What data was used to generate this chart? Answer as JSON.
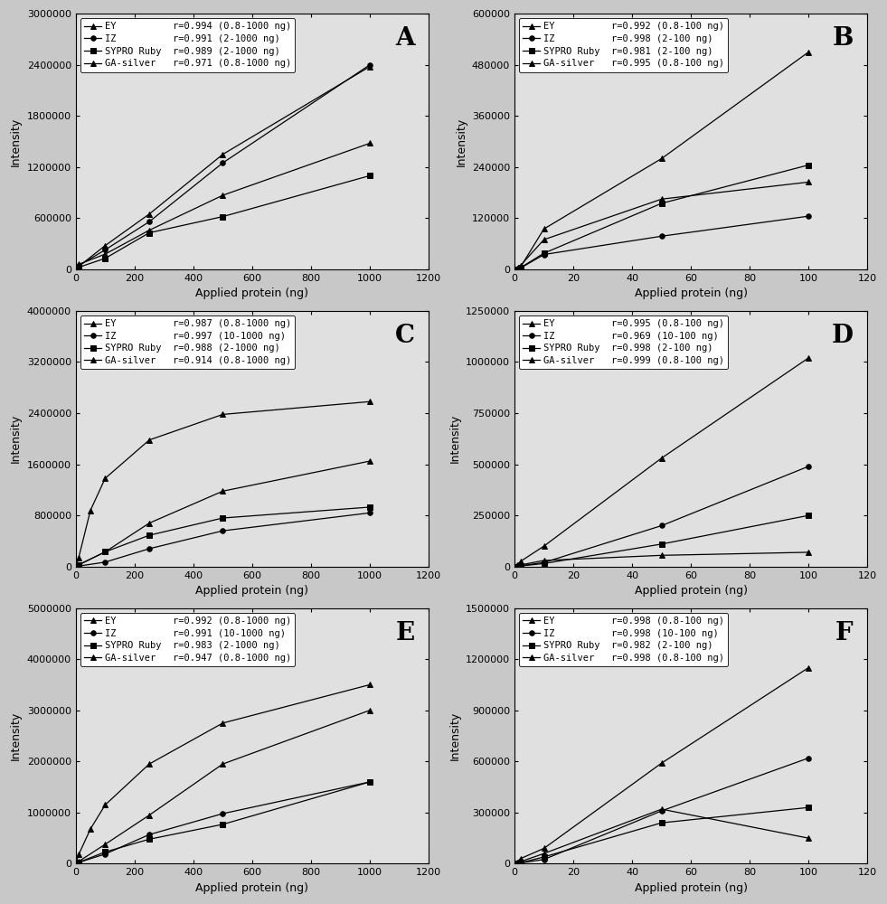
{
  "panels": [
    {
      "label": "A",
      "xlim": [
        0,
        1200
      ],
      "ylim": [
        0,
        3000000
      ],
      "xticks": [
        0,
        200,
        400,
        600,
        800,
        1000,
        1200
      ],
      "yticks": [
        0,
        600000,
        1200000,
        1800000,
        2400000,
        3000000
      ],
      "legend": [
        {
          "name": "EY",
          "r": "r=0.994 (0.8-1000 ng)"
        },
        {
          "name": "IZ",
          "r": "r=0.991 (2-1000 ng)"
        },
        {
          "name": "SYPRO Ruby",
          "r": "r=0.989 (2-1000 ng)"
        },
        {
          "name": "GA-silver",
          "r": "r=0.971 (0.8-1000 ng)"
        }
      ],
      "series": [
        {
          "x": [
            0,
            0.8,
            10,
            100,
            250,
            500,
            1000
          ],
          "y": [
            0,
            3000,
            35000,
            280000,
            650000,
            1350000,
            2380000
          ]
        },
        {
          "x": [
            0,
            2,
            10,
            100,
            250,
            500,
            1000
          ],
          "y": [
            0,
            5000,
            45000,
            230000,
            560000,
            1250000,
            2400000
          ]
        },
        {
          "x": [
            0,
            2,
            10,
            100,
            250,
            500,
            1000
          ],
          "y": [
            0,
            3000,
            25000,
            130000,
            430000,
            620000,
            1100000
          ]
        },
        {
          "x": [
            0,
            0.8,
            10,
            100,
            250,
            500,
            1000
          ],
          "y": [
            0,
            8000,
            60000,
            180000,
            460000,
            870000,
            1480000
          ]
        }
      ]
    },
    {
      "label": "B",
      "xlim": [
        0,
        120
      ],
      "ylim": [
        0,
        600000
      ],
      "xticks": [
        0,
        20,
        40,
        60,
        80,
        100,
        120
      ],
      "yticks": [
        0,
        120000,
        240000,
        360000,
        480000,
        600000
      ],
      "legend": [
        {
          "name": "EY",
          "r": "r=0.992 (0.8-100 ng)"
        },
        {
          "name": "IZ",
          "r": "r=0.998 (2-100 ng)"
        },
        {
          "name": "SYPRO Ruby",
          "r": "r=0.981 (2-100 ng)"
        },
        {
          "name": "GA-silver",
          "r": "r=0.995 (0.8-100 ng)"
        }
      ],
      "series": [
        {
          "x": [
            0,
            0.8,
            2,
            10,
            50,
            100
          ],
          "y": [
            0,
            2000,
            5000,
            95000,
            260000,
            510000
          ]
        },
        {
          "x": [
            0,
            0.8,
            2,
            10,
            50,
            100
          ],
          "y": [
            0,
            1000,
            3000,
            35000,
            78000,
            125000
          ]
        },
        {
          "x": [
            0,
            2,
            10,
            50,
            100
          ],
          "y": [
            0,
            4000,
            38000,
            155000,
            245000
          ]
        },
        {
          "x": [
            0,
            0.8,
            2,
            10,
            50,
            100
          ],
          "y": [
            0,
            3000,
            9000,
            70000,
            165000,
            205000
          ]
        }
      ]
    },
    {
      "label": "C",
      "xlim": [
        0,
        1200
      ],
      "ylim": [
        0,
        4000000
      ],
      "xticks": [
        0,
        200,
        400,
        600,
        800,
        1000,
        1200
      ],
      "yticks": [
        0,
        800000,
        1600000,
        2400000,
        3200000,
        4000000
      ],
      "legend": [
        {
          "name": "EY",
          "r": "r=0.987 (0.8-1000 ng)"
        },
        {
          "name": "IZ",
          "r": "r=0.997 (10-1000 ng)"
        },
        {
          "name": "SYPRO Ruby",
          "r": "r=0.988 (2-1000 ng)"
        },
        {
          "name": "GA-silver",
          "r": "r=0.914 (0.8-1000 ng)"
        }
      ],
      "series": [
        {
          "x": [
            0,
            0.8,
            10,
            100,
            250,
            500,
            1000
          ],
          "y": [
            0,
            4000,
            28000,
            230000,
            680000,
            1180000,
            1650000
          ]
        },
        {
          "x": [
            0,
            10,
            100,
            250,
            500,
            1000
          ],
          "y": [
            0,
            8000,
            70000,
            280000,
            560000,
            840000
          ]
        },
        {
          "x": [
            0,
            2,
            10,
            100,
            250,
            500,
            1000
          ],
          "y": [
            0,
            4000,
            28000,
            230000,
            490000,
            760000,
            930000
          ]
        },
        {
          "x": [
            0,
            0.8,
            10,
            50,
            100,
            250,
            500,
            1000
          ],
          "y": [
            0,
            12000,
            140000,
            880000,
            1380000,
            1980000,
            2380000,
            2580000
          ]
        }
      ]
    },
    {
      "label": "D",
      "xlim": [
        0,
        120
      ],
      "ylim": [
        0,
        1250000
      ],
      "xticks": [
        0,
        20,
        40,
        60,
        80,
        100,
        120
      ],
      "yticks": [
        0,
        250000,
        500000,
        750000,
        1000000,
        1250000
      ],
      "legend": [
        {
          "name": "EY",
          "r": "r=0.995 (0.8-100 ng)"
        },
        {
          "name": "IZ",
          "r": "r=0.969 (10-100 ng)"
        },
        {
          "name": "SYPRO Ruby",
          "r": "r=0.998 (2-100 ng)"
        },
        {
          "name": "GA-silver",
          "r": "r=0.999 (0.8-100 ng)"
        }
      ],
      "series": [
        {
          "x": [
            0,
            0.8,
            2,
            10,
            50,
            100
          ],
          "y": [
            0,
            3000,
            8000,
            30000,
            55000,
            70000
          ]
        },
        {
          "x": [
            0,
            10,
            50,
            100
          ],
          "y": [
            0,
            20000,
            200000,
            490000
          ]
        },
        {
          "x": [
            0,
            2,
            10,
            50,
            100
          ],
          "y": [
            0,
            3000,
            15000,
            110000,
            250000
          ]
        },
        {
          "x": [
            0,
            0.8,
            2,
            10,
            50,
            100
          ],
          "y": [
            0,
            8000,
            25000,
            100000,
            530000,
            1020000
          ]
        }
      ]
    },
    {
      "label": "E",
      "xlim": [
        0,
        1200
      ],
      "ylim": [
        0,
        5000000
      ],
      "xticks": [
        0,
        200,
        400,
        600,
        800,
        1000,
        1200
      ],
      "yticks": [
        0,
        1000000,
        2000000,
        3000000,
        4000000,
        5000000
      ],
      "legend": [
        {
          "name": "EY",
          "r": "r=0.992 (0.8-1000 ng)"
        },
        {
          "name": "IZ",
          "r": "r=0.991 (10-1000 ng)"
        },
        {
          "name": "SYPRO Ruby",
          "r": "r=0.983 (2-1000 ng)"
        },
        {
          "name": "GA-silver",
          "r": "r=0.947 (0.8-1000 ng)"
        }
      ],
      "series": [
        {
          "x": [
            0,
            0.8,
            10,
            100,
            250,
            500,
            1000
          ],
          "y": [
            0,
            5000,
            45000,
            380000,
            950000,
            1950000,
            3000000
          ]
        },
        {
          "x": [
            0,
            10,
            100,
            250,
            500,
            1000
          ],
          "y": [
            0,
            25000,
            190000,
            570000,
            980000,
            1600000
          ]
        },
        {
          "x": [
            0,
            2,
            10,
            100,
            250,
            500,
            1000
          ],
          "y": [
            0,
            4000,
            28000,
            230000,
            480000,
            770000,
            1600000
          ]
        },
        {
          "x": [
            0,
            0.8,
            10,
            50,
            100,
            250,
            500,
            1000
          ],
          "y": [
            0,
            25000,
            180000,
            680000,
            1150000,
            1950000,
            2750000,
            3500000
          ]
        }
      ]
    },
    {
      "label": "F",
      "xlim": [
        0,
        120
      ],
      "ylim": [
        0,
        1500000
      ],
      "xticks": [
        0,
        20,
        40,
        60,
        80,
        100,
        120
      ],
      "yticks": [
        0,
        300000,
        600000,
        900000,
        1200000,
        1500000
      ],
      "legend": [
        {
          "name": "EY",
          "r": "r=0.998 (0.8-100 ng)"
        },
        {
          "name": "IZ",
          "r": "r=0.998 (10-100 ng)"
        },
        {
          "name": "SYPRO Ruby",
          "r": "r=0.982 (2-100 ng)"
        },
        {
          "name": "GA-silver",
          "r": "r=0.998 (0.8-100 ng)"
        }
      ],
      "series": [
        {
          "x": [
            0,
            0.8,
            2,
            10,
            50,
            100
          ],
          "y": [
            0,
            3000,
            12000,
            60000,
            320000,
            150000
          ]
        },
        {
          "x": [
            0,
            10,
            50,
            100
          ],
          "y": [
            0,
            25000,
            310000,
            620000
          ]
        },
        {
          "x": [
            0,
            2,
            10,
            50,
            100
          ],
          "y": [
            0,
            5000,
            40000,
            240000,
            330000
          ]
        },
        {
          "x": [
            0,
            0.8,
            2,
            10,
            50,
            100
          ],
          "y": [
            0,
            8000,
            30000,
            90000,
            590000,
            1150000
          ]
        }
      ]
    }
  ],
  "xlabel": "Applied protein (ng)",
  "ylabel": "Intensity",
  "bg_color": "#c8c8c8",
  "plot_bg_color": "#e0e0e0",
  "label_fontsize": 9,
  "tick_fontsize": 8,
  "legend_fontsize": 7.5,
  "panel_label_fontsize": 20
}
